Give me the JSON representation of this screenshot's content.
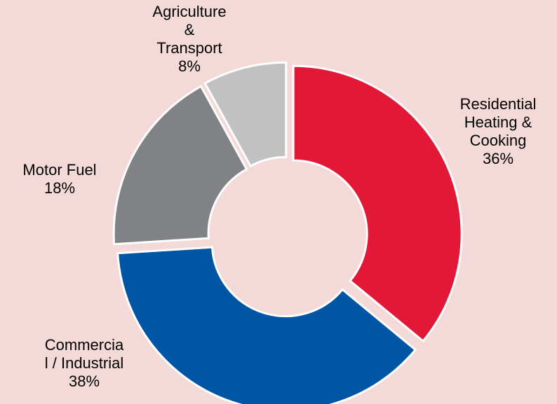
{
  "chart_data": {
    "type": "donut",
    "categories": [
      "Residential\nHeating &\nCooking",
      "Commercia\nl / Industrial",
      "Motor Fuel",
      "Agriculture\n&\nTransport"
    ],
    "values": [
      36,
      38,
      18,
      8
    ],
    "value_labels": [
      "36%",
      "38%",
      "18%",
      "8%"
    ],
    "colors": [
      "#e31837",
      "#0055a4",
      "#808285",
      "#c1c1c1"
    ]
  }
}
